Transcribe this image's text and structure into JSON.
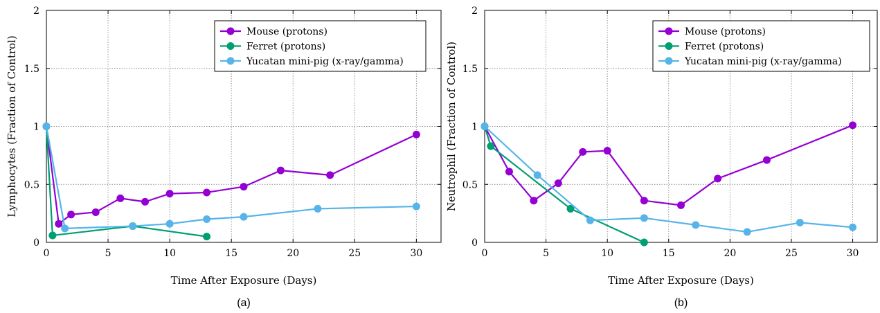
{
  "chart_data": [
    {
      "type": "line",
      "panel_label": "(a)",
      "xlabel": "Time After Exposure (Days)",
      "ylabel": "Lymphocytes (Fraction of Control)",
      "xlim": [
        0,
        32
      ],
      "ylim": [
        0,
        2
      ],
      "xticks": [
        0,
        5,
        10,
        15,
        20,
        25,
        30
      ],
      "yticks": [
        0,
        0.5,
        1,
        1.5,
        2
      ],
      "ytick_labels": [
        "0",
        "0.5",
        "1",
        "1.5",
        "2"
      ],
      "grid": true,
      "legend_position": "top-right",
      "series": [
        {
          "name": "Mouse (protons)",
          "color": "#9400d3",
          "x": [
            0,
            1,
            2,
            4,
            6,
            8,
            10,
            13,
            16,
            19,
            23,
            30
          ],
          "y": [
            1.0,
            0.16,
            0.24,
            0.26,
            0.38,
            0.35,
            0.42,
            0.43,
            0.48,
            0.62,
            0.58,
            0.93
          ]
        },
        {
          "name": "Ferret (protons)",
          "color": "#009e73",
          "x": [
            0,
            0.5,
            7,
            13
          ],
          "y": [
            1.0,
            0.06,
            0.14,
            0.05
          ]
        },
        {
          "name": "Yucatan mini-pig (x-ray/gamma)",
          "color": "#56b4e9",
          "x": [
            0,
            1.5,
            7,
            10,
            13,
            16,
            22,
            30
          ],
          "y": [
            1.0,
            0.12,
            0.14,
            0.16,
            0.2,
            0.22,
            0.29,
            0.31
          ]
        }
      ]
    },
    {
      "type": "line",
      "panel_label": "(b)",
      "xlabel": "Time After Exposure (Days)",
      "ylabel": "Neutrophil (Fraction of Control)",
      "xlim": [
        0,
        32
      ],
      "ylim": [
        0,
        2
      ],
      "xticks": [
        0,
        5,
        10,
        15,
        20,
        25,
        30
      ],
      "yticks": [
        0,
        0.5,
        1,
        1.5,
        2
      ],
      "ytick_labels": [
        "0",
        "0.5",
        "1",
        "1.5",
        "2"
      ],
      "grid": true,
      "legend_position": "top-right",
      "series": [
        {
          "name": "Mouse (protons)",
          "color": "#9400d3",
          "x": [
            0,
            2,
            4,
            6,
            8,
            10,
            13,
            16,
            19,
            23,
            30
          ],
          "y": [
            1.0,
            0.61,
            0.36,
            0.51,
            0.78,
            0.79,
            0.36,
            0.32,
            0.55,
            0.71,
            1.01
          ]
        },
        {
          "name": "Ferret (protons)",
          "color": "#009e73",
          "x": [
            0,
            0.5,
            7,
            13
          ],
          "y": [
            1.0,
            0.83,
            0.29,
            0.0
          ]
        },
        {
          "name": "Yucatan mini-pig (x-ray/gamma)",
          "color": "#56b4e9",
          "x": [
            0,
            4.3,
            8.6,
            13,
            17.2,
            21.4,
            25.7,
            30
          ],
          "y": [
            1.0,
            0.58,
            0.19,
            0.21,
            0.15,
            0.09,
            0.17,
            0.13
          ]
        }
      ]
    }
  ]
}
